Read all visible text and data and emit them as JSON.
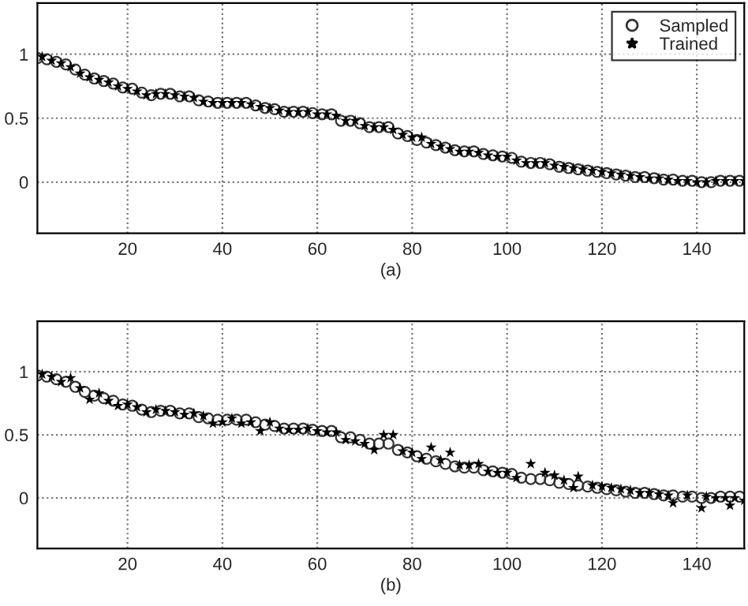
{
  "chart_data": [
    {
      "type": "scatter",
      "xlabel": "(a)",
      "xlim": [
        1,
        150
      ],
      "ylim": [
        -0.4,
        1.4
      ],
      "xticks": [
        20,
        40,
        60,
        80,
        100,
        120,
        140
      ],
      "yticks": [
        0,
        0.5,
        1
      ],
      "grid": true,
      "legend": "top right",
      "series": [
        {
          "name": "Sampled",
          "color": "#333333",
          "marker": "circle",
          "x": [
            1,
            3,
            5,
            7,
            9,
            11,
            13,
            15,
            17,
            19,
            21,
            23,
            25,
            27,
            29,
            31,
            33,
            35,
            37,
            39,
            41,
            43,
            45,
            47,
            49,
            51,
            53,
            55,
            57,
            59,
            61,
            63,
            65,
            67,
            69,
            71,
            73,
            75,
            77,
            79,
            81,
            83,
            85,
            87,
            89,
            91,
            93,
            95,
            97,
            99,
            101,
            103,
            105,
            107,
            109,
            111,
            113,
            115,
            117,
            119,
            121,
            123,
            125,
            127,
            129,
            131,
            133,
            135,
            137,
            139,
            141,
            143,
            145,
            147,
            149
          ],
          "values": [
            0.97,
            0.96,
            0.94,
            0.92,
            0.88,
            0.84,
            0.81,
            0.79,
            0.77,
            0.74,
            0.73,
            0.7,
            0.68,
            0.69,
            0.69,
            0.67,
            0.67,
            0.64,
            0.63,
            0.62,
            0.62,
            0.62,
            0.62,
            0.6,
            0.58,
            0.57,
            0.55,
            0.55,
            0.55,
            0.54,
            0.53,
            0.53,
            0.48,
            0.48,
            0.46,
            0.43,
            0.43,
            0.43,
            0.38,
            0.36,
            0.33,
            0.31,
            0.29,
            0.27,
            0.25,
            0.24,
            0.24,
            0.22,
            0.21,
            0.2,
            0.19,
            0.16,
            0.15,
            0.15,
            0.14,
            0.12,
            0.11,
            0.1,
            0.09,
            0.08,
            0.07,
            0.06,
            0.05,
            0.04,
            0.04,
            0.03,
            0.02,
            0.02,
            0.01,
            0.01,
            0.0,
            0.0,
            0.01,
            0.01,
            0.01
          ]
        },
        {
          "name": "Trained",
          "color": "#000000",
          "marker": "star",
          "x": [
            2,
            4,
            6,
            8,
            10,
            12,
            14,
            16,
            18,
            20,
            22,
            24,
            26,
            28,
            30,
            32,
            34,
            36,
            38,
            40,
            42,
            44,
            46,
            48,
            50,
            52,
            54,
            56,
            58,
            60,
            62,
            64,
            66,
            68,
            70,
            72,
            74,
            76,
            78,
            80,
            82,
            84,
            86,
            88,
            90,
            92,
            94,
            96,
            98,
            100,
            102,
            104,
            106,
            108,
            110,
            112,
            114,
            116,
            118,
            120,
            122,
            124,
            126,
            128,
            130,
            132,
            134,
            136,
            138,
            140,
            142,
            144,
            146,
            148,
            150
          ],
          "values": [
            0.98,
            0.95,
            0.93,
            0.9,
            0.85,
            0.82,
            0.8,
            0.78,
            0.75,
            0.73,
            0.71,
            0.68,
            0.69,
            0.69,
            0.68,
            0.67,
            0.66,
            0.63,
            0.62,
            0.62,
            0.62,
            0.62,
            0.61,
            0.59,
            0.58,
            0.56,
            0.55,
            0.55,
            0.55,
            0.53,
            0.53,
            0.52,
            0.48,
            0.48,
            0.44,
            0.43,
            0.43,
            0.41,
            0.37,
            0.35,
            0.35,
            0.3,
            0.28,
            0.26,
            0.24,
            0.24,
            0.23,
            0.21,
            0.2,
            0.2,
            0.17,
            0.15,
            0.15,
            0.15,
            0.13,
            0.12,
            0.11,
            0.1,
            0.09,
            0.08,
            0.07,
            0.06,
            0.05,
            0.04,
            0.03,
            0.03,
            0.02,
            0.01,
            0.01,
            0.0,
            0.0,
            0.01,
            0.01,
            0.01,
            0.01
          ]
        }
      ]
    },
    {
      "type": "scatter",
      "xlabel": "(b)",
      "xlim": [
        1,
        150
      ],
      "ylim": [
        -0.4,
        1.4
      ],
      "xticks": [
        20,
        40,
        60,
        80,
        100,
        120,
        140
      ],
      "yticks": [
        0,
        0.5,
        1
      ],
      "grid": true,
      "series": [
        {
          "color": "#333333",
          "marker": "circle",
          "x": [
            1,
            3,
            5,
            7,
            9,
            11,
            13,
            15,
            17,
            19,
            21,
            23,
            25,
            27,
            29,
            31,
            33,
            35,
            37,
            39,
            41,
            43,
            45,
            47,
            49,
            51,
            53,
            55,
            57,
            59,
            61,
            63,
            65,
            67,
            69,
            71,
            73,
            75,
            77,
            79,
            81,
            83,
            85,
            87,
            89,
            91,
            93,
            95,
            97,
            99,
            101,
            103,
            105,
            107,
            109,
            111,
            113,
            115,
            117,
            119,
            121,
            123,
            125,
            127,
            129,
            131,
            133,
            135,
            137,
            139,
            141,
            143,
            145,
            147,
            149
          ],
          "values": [
            0.97,
            0.96,
            0.94,
            0.92,
            0.88,
            0.84,
            0.81,
            0.79,
            0.77,
            0.74,
            0.73,
            0.7,
            0.68,
            0.69,
            0.69,
            0.67,
            0.67,
            0.64,
            0.63,
            0.62,
            0.62,
            0.62,
            0.62,
            0.6,
            0.58,
            0.57,
            0.55,
            0.55,
            0.55,
            0.54,
            0.53,
            0.53,
            0.48,
            0.48,
            0.46,
            0.43,
            0.43,
            0.43,
            0.38,
            0.36,
            0.33,
            0.31,
            0.29,
            0.27,
            0.25,
            0.24,
            0.24,
            0.22,
            0.21,
            0.2,
            0.19,
            0.16,
            0.15,
            0.15,
            0.14,
            0.12,
            0.11,
            0.1,
            0.09,
            0.08,
            0.07,
            0.06,
            0.05,
            0.04,
            0.04,
            0.03,
            0.02,
            0.02,
            0.01,
            0.01,
            0.0,
            0.0,
            0.01,
            0.01,
            0.01
          ]
        },
        {
          "color": "#000000",
          "marker": "star",
          "x": [
            2,
            4,
            6,
            8,
            10,
            12,
            14,
            16,
            18,
            20,
            22,
            24,
            26,
            28,
            30,
            32,
            34,
            36,
            38,
            40,
            42,
            44,
            46,
            48,
            50,
            52,
            54,
            56,
            58,
            60,
            62,
            64,
            66,
            68,
            70,
            72,
            74,
            76,
            78,
            80,
            82,
            84,
            86,
            88,
            90,
            92,
            94,
            96,
            98,
            100,
            102,
            105,
            108,
            110,
            112,
            114,
            115,
            118,
            120,
            122,
            124,
            126,
            128,
            130,
            132,
            134,
            135,
            138,
            141,
            142,
            144,
            146,
            147,
            148,
            150
          ],
          "values": [
            0.98,
            0.96,
            0.92,
            0.95,
            0.87,
            0.78,
            0.83,
            0.77,
            0.73,
            0.74,
            0.72,
            0.68,
            0.7,
            0.69,
            0.68,
            0.66,
            0.67,
            0.65,
            0.59,
            0.6,
            0.63,
            0.59,
            0.6,
            0.53,
            0.6,
            0.55,
            0.54,
            0.54,
            0.55,
            0.53,
            0.52,
            0.52,
            0.46,
            0.45,
            0.43,
            0.38,
            0.5,
            0.5,
            0.37,
            0.36,
            0.31,
            0.4,
            0.3,
            0.36,
            0.26,
            0.26,
            0.27,
            0.21,
            0.2,
            0.2,
            0.16,
            0.27,
            0.2,
            0.18,
            0.14,
            0.08,
            0.17,
            0.1,
            0.09,
            0.08,
            0.07,
            0.06,
            0.04,
            0.04,
            0.03,
            0.02,
            -0.04,
            0.02,
            -0.08,
            0.01,
            0.0,
            0.0,
            -0.06,
            0.0,
            -0.02
          ]
        }
      ]
    }
  ]
}
